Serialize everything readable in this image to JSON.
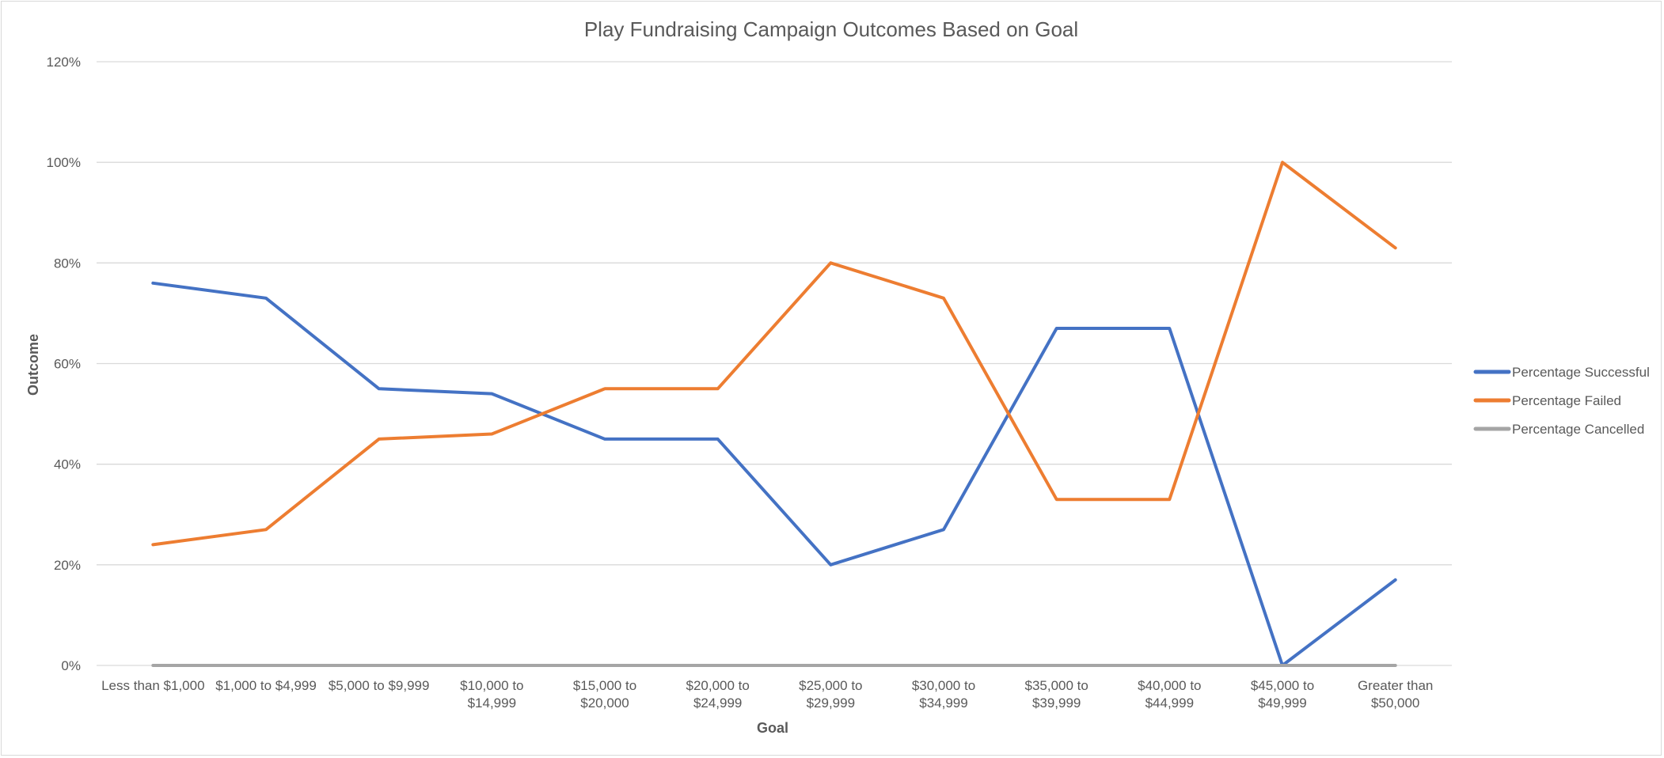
{
  "chart_data": {
    "type": "line",
    "title": "Play Fundraising Campaign Outcomes Based on Goal",
    "xlabel": "Goal",
    "ylabel": "Outcome",
    "ylim": [
      0,
      1.2
    ],
    "yticks": [
      "0%",
      "20%",
      "40%",
      "60%",
      "80%",
      "100%",
      "120%"
    ],
    "grid": true,
    "legend_position": "right",
    "categories": [
      [
        "Less than $1,000"
      ],
      [
        "$1,000 to $4,999"
      ],
      [
        "$5,000 to $9,999"
      ],
      [
        "$10,000 to",
        "$14,999"
      ],
      [
        "$15,000 to",
        "$20,000"
      ],
      [
        "$20,000 to",
        "$24,999"
      ],
      [
        "$25,000 to",
        "$29,999"
      ],
      [
        "$30,000 to",
        "$34,999"
      ],
      [
        "$35,000 to",
        "$39,999"
      ],
      [
        "$40,000 to",
        "$44,999"
      ],
      [
        "$45,000 to",
        "$49,999"
      ],
      [
        "Greater than",
        "$50,000"
      ]
    ],
    "series": [
      {
        "name": "Percentage Successful",
        "color": "#4472c4",
        "values": [
          0.76,
          0.73,
          0.55,
          0.54,
          0.45,
          0.45,
          0.2,
          0.27,
          0.67,
          0.67,
          0.0,
          0.17
        ]
      },
      {
        "name": "Percentage Failed",
        "color": "#ed7d31",
        "values": [
          0.24,
          0.27,
          0.45,
          0.46,
          0.55,
          0.55,
          0.8,
          0.73,
          0.33,
          0.33,
          1.0,
          0.83
        ]
      },
      {
        "name": "Percentage Cancelled",
        "color": "#a5a5a5",
        "values": [
          0,
          0,
          0,
          0,
          0,
          0,
          0,
          0,
          0,
          0,
          0,
          0
        ]
      }
    ]
  }
}
